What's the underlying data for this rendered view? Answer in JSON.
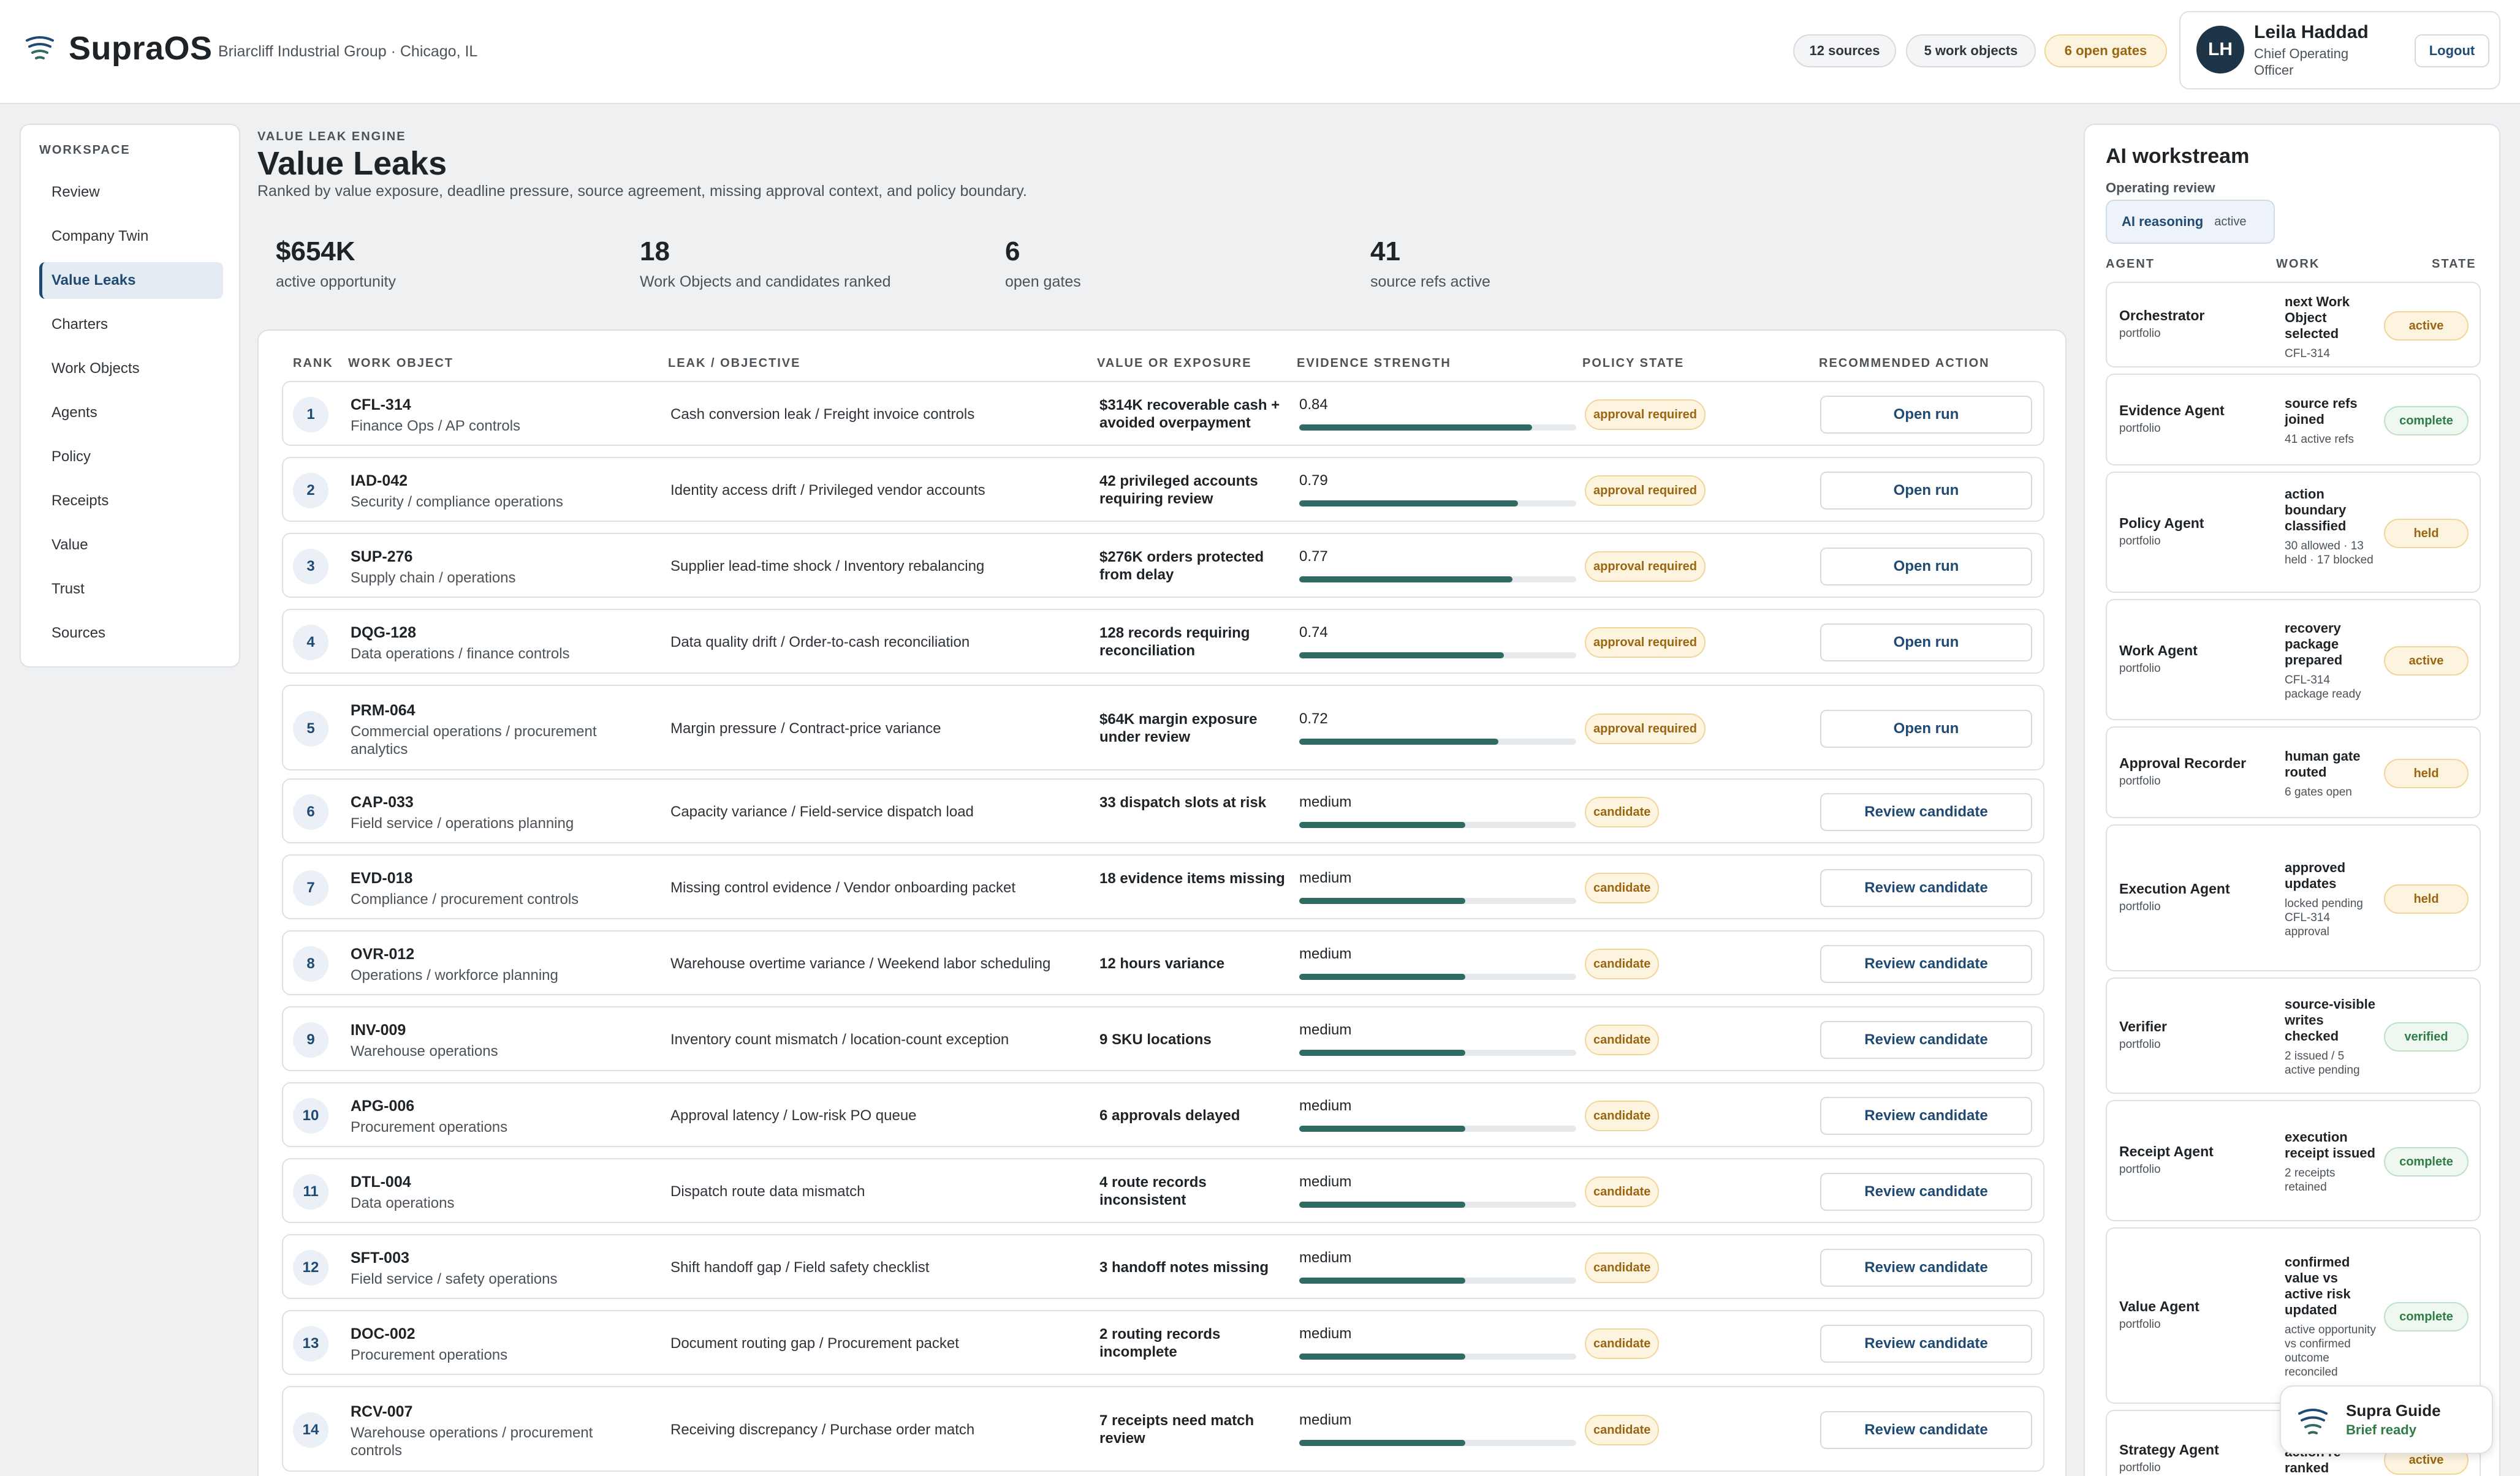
{
  "app": {
    "brand": "SupraOS",
    "org": "Briarcliff Industrial Group · Chicago, IL"
  },
  "header": {
    "sources": "12 sources",
    "work_objects": "5 work objects",
    "open_gates": "6 open gates"
  },
  "user": {
    "initials": "LH",
    "name": "Leila Haddad",
    "role": "Chief Operating Officer",
    "logout": "Logout"
  },
  "sidebar": {
    "title": "WORKSPACE",
    "items": [
      {
        "label": "Review"
      },
      {
        "label": "Company Twin"
      },
      {
        "label": "Value Leaks"
      },
      {
        "label": "Charters"
      },
      {
        "label": "Work Objects"
      },
      {
        "label": "Agents"
      },
      {
        "label": "Policy"
      },
      {
        "label": "Receipts"
      },
      {
        "label": "Value"
      },
      {
        "label": "Trust"
      },
      {
        "label": "Sources"
      }
    ]
  },
  "main": {
    "eyebrow": "VALUE LEAK ENGINE",
    "title": "Value Leaks",
    "subtitle": "Ranked by value exposure, deadline pressure, source agreement, missing approval context, and policy boundary.",
    "kpis": [
      {
        "value": "$654K",
        "label": "active opportunity"
      },
      {
        "value": "18",
        "label": "Work Objects and candidates ranked"
      },
      {
        "value": "6",
        "label": "open gates"
      },
      {
        "value": "41",
        "label": "source refs active"
      }
    ]
  },
  "table": {
    "headers": {
      "rank": "RANK",
      "work_object": "WORK OBJECT",
      "leak": "LEAK / OBJECTIVE",
      "value": "VALUE OR EXPOSURE",
      "evidence": "EVIDENCE STRENGTH",
      "policy": "POLICY STATE",
      "action": "RECOMMENDED ACTION"
    },
    "rows": [
      {
        "rank": "1",
        "code": "CFL-314",
        "sub": "Finance Ops / AP controls",
        "leak": "Cash conversion leak / Freight invoice controls",
        "value": "$314K recoverable cash + avoided overpayment",
        "evidence": "0.84",
        "strength": 0.84,
        "policy": "approval required",
        "action": "Open run"
      },
      {
        "rank": "2",
        "code": "IAD-042",
        "sub": "Security / compliance operations",
        "leak": "Identity access drift / Privileged vendor accounts",
        "value": "42 privileged accounts requiring review",
        "evidence": "0.79",
        "strength": 0.79,
        "policy": "approval required",
        "action": "Open run"
      },
      {
        "rank": "3",
        "code": "SUP-276",
        "sub": "Supply chain / operations",
        "leak": "Supplier lead-time shock / Inventory rebalancing",
        "value": "$276K orders protected from delay",
        "evidence": "0.77",
        "strength": 0.77,
        "policy": "approval required",
        "action": "Open run"
      },
      {
        "rank": "4",
        "code": "DQG-128",
        "sub": "Data operations / finance controls",
        "leak": "Data quality drift / Order-to-cash reconciliation",
        "value": "128 records requiring reconciliation",
        "evidence": "0.74",
        "strength": 0.74,
        "policy": "approval required",
        "action": "Open run"
      },
      {
        "rank": "5",
        "code": "PRM-064",
        "sub": "Commercial operations / procurement analytics",
        "leak": "Margin pressure / Contract-price variance",
        "value": "$64K margin exposure under review",
        "evidence": "0.72",
        "strength": 0.72,
        "policy": "approval required",
        "action": "Open run"
      },
      {
        "rank": "6",
        "code": "CAP-033",
        "sub": "Field service / operations planning",
        "leak": "Capacity variance / Field-service dispatch load",
        "value": "33 dispatch slots at risk",
        "evidence": "medium",
        "strength": 0.6,
        "policy": "candidate",
        "action": "Review candidate"
      },
      {
        "rank": "7",
        "code": "EVD-018",
        "sub": "Compliance / procurement controls",
        "leak": "Missing control evidence / Vendor onboarding packet",
        "value": "18 evidence items missing",
        "evidence": "medium",
        "strength": 0.6,
        "policy": "candidate",
        "action": "Review candidate"
      },
      {
        "rank": "8",
        "code": "OVR-012",
        "sub": "Operations / workforce planning",
        "leak": "Warehouse overtime variance / Weekend labor scheduling",
        "value": "12 hours variance",
        "evidence": "medium",
        "strength": 0.6,
        "policy": "candidate",
        "action": "Review candidate"
      },
      {
        "rank": "9",
        "code": "INV-009",
        "sub": "Warehouse operations",
        "leak": "Inventory count mismatch / location-count exception",
        "value": "9 SKU locations",
        "evidence": "medium",
        "strength": 0.6,
        "policy": "candidate",
        "action": "Review candidate"
      },
      {
        "rank": "10",
        "code": "APG-006",
        "sub": "Procurement operations",
        "leak": "Approval latency / Low-risk PO queue",
        "value": "6 approvals delayed",
        "evidence": "medium",
        "strength": 0.6,
        "policy": "candidate",
        "action": "Review candidate"
      },
      {
        "rank": "11",
        "code": "DTL-004",
        "sub": "Data operations",
        "leak": "Dispatch route data mismatch",
        "value": "4 route records inconsistent",
        "evidence": "medium",
        "strength": 0.6,
        "policy": "candidate",
        "action": "Review candidate"
      },
      {
        "rank": "12",
        "code": "SFT-003",
        "sub": "Field service / safety operations",
        "leak": "Shift handoff gap / Field safety checklist",
        "value": "3 handoff notes missing",
        "evidence": "medium",
        "strength": 0.6,
        "policy": "candidate",
        "action": "Review candidate"
      },
      {
        "rank": "13",
        "code": "DOC-002",
        "sub": "Procurement operations",
        "leak": "Document routing gap / Procurement packet",
        "value": "2 routing records incomplete",
        "evidence": "medium",
        "strength": 0.6,
        "policy": "candidate",
        "action": "Review candidate"
      },
      {
        "rank": "14",
        "code": "RCV-007",
        "sub": "Warehouse operations / procurement controls",
        "leak": "Receiving discrepancy / Purchase order match",
        "value": "7 receipts need match review",
        "evidence": "medium",
        "strength": 0.6,
        "policy": "candidate",
        "action": "Review candidate"
      }
    ]
  },
  "ai": {
    "title": "AI workstream",
    "subtitle": "Operating review",
    "chip_label": "AI reasoning",
    "chip_state": "active",
    "headers": {
      "agent": "AGENT",
      "work": "WORK",
      "state": "STATE"
    },
    "agents": [
      {
        "name": "Orchestrator",
        "scope": "portfolio",
        "work": "next Work Object selected",
        "detail": "CFL-314",
        "state": "active"
      },
      {
        "name": "Evidence Agent",
        "scope": "portfolio",
        "work": "source refs joined",
        "detail": "41 active refs",
        "state": "complete"
      },
      {
        "name": "Policy Agent",
        "scope": "portfolio",
        "work": "action boundary classified",
        "detail": "30 allowed · 13 held · 17 blocked",
        "state": "held"
      },
      {
        "name": "Work Agent",
        "scope": "portfolio",
        "work": "recovery package prepared",
        "detail": "CFL-314 package ready",
        "state": "active"
      },
      {
        "name": "Approval Recorder",
        "scope": "portfolio",
        "work": "human gate routed",
        "detail": "6 gates open",
        "state": "held"
      },
      {
        "name": "Execution Agent",
        "scope": "portfolio",
        "work": "approved updates",
        "detail": "locked pending CFL-314 approval",
        "state": "held"
      },
      {
        "name": "Verifier",
        "scope": "portfolio",
        "work": "source-visible writes checked",
        "detail": "2 issued / 5 active pending",
        "state": "verified"
      },
      {
        "name": "Receipt Agent",
        "scope": "portfolio",
        "work": "execution receipt issued",
        "detail": "2 receipts retained",
        "state": "complete"
      },
      {
        "name": "Value Agent",
        "scope": "portfolio",
        "work": "confirmed value vs active risk updated",
        "detail": "active opportunity vs confirmed outcome reconciled",
        "state": "complete"
      },
      {
        "name": "Strategy Agent",
        "scope": "portfolio",
        "work": "action re-ranked",
        "detail": "",
        "state": "active"
      }
    ]
  },
  "guide": {
    "title": "Supra Guide",
    "state": "Brief ready"
  }
}
